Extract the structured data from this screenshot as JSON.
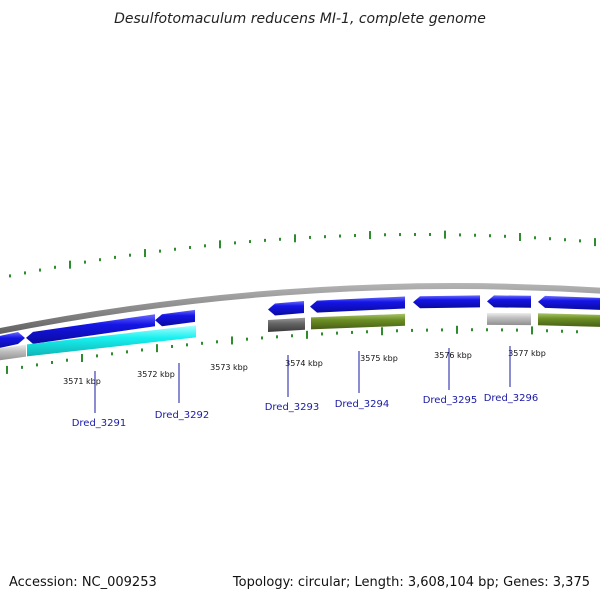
{
  "title": "Desulfotomaculum reducens MI-1, complete genome",
  "footer": {
    "accession": "Accession: NC_009253",
    "summary": "Topology: circular; Length: 3,608,104 bp; Genes: 3,375"
  },
  "colors": {
    "background": "#ffffff",
    "backbone": "#8a8a8a",
    "tick": "#2e8b2e",
    "gene_blue": "#1515e6",
    "gene_cyan": "#19f0f0",
    "gene_green": "#6b8e23",
    "gene_grey_dark": "#666666",
    "gene_grey_light": "#c0c0c0",
    "gene_label": "#1a1aa6"
  },
  "scale_labels": [
    "3571 kbp",
    "3572 kbp",
    "3573 kbp",
    "3574 kbp",
    "3575 kbp",
    "3576 kbp",
    "3577 kbp"
  ],
  "gene_labels": [
    "Dred_3291",
    "Dred_3292",
    "Dred_3293",
    "Dred_3294",
    "Dred_3295",
    "Dred_3296"
  ]
}
